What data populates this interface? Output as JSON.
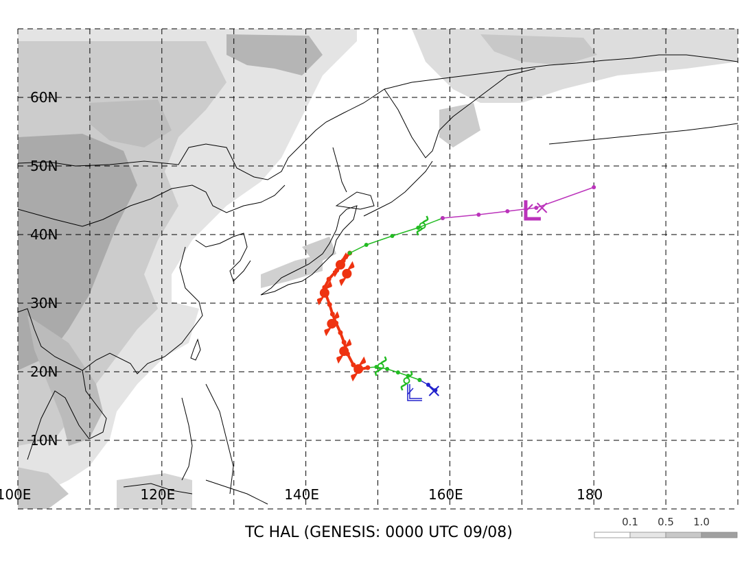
{
  "title": "TC HAL (GENESIS: 0000 UTC 09/08)",
  "map": {
    "lon_range": [
      100,
      200
    ],
    "lat_range": [
      0,
      70
    ],
    "lat_labels": [
      {
        "lat": 60,
        "label": "60N"
      },
      {
        "lat": 50,
        "label": "50N"
      },
      {
        "lat": 40,
        "label": "40N"
      },
      {
        "lat": 30,
        "label": "30N"
      },
      {
        "lat": 20,
        "label": "20N"
      },
      {
        "lat": 10,
        "label": "10N"
      }
    ],
    "lon_labels": [
      {
        "lon": 100,
        "label": "100E"
      },
      {
        "lon": 120,
        "label": "120E"
      },
      {
        "lon": 140,
        "label": "140E"
      },
      {
        "lon": 160,
        "label": "160E"
      },
      {
        "lon": 180,
        "label": "180"
      }
    ],
    "grid_lines": true
  },
  "legend": {
    "labels": [
      "0.1",
      "0.5",
      "1.0"
    ],
    "colors": [
      "#ffffff",
      "#e6e6e6",
      "#c8c8c8",
      "#a0a0a0"
    ]
  },
  "colors": {
    "tropical_depression": "#2222cc",
    "tropical_storm": "#22bb22",
    "typhoon": "#ee3311",
    "extratropical": "#bb33bb",
    "coast": "#000000"
  },
  "track": {
    "start_symbol_color": "#2222cc",
    "end_symbol_color": "#bb33bb",
    "segments": [
      {
        "stage": "depression",
        "points": [
          [
            158.0,
            17.3
          ],
          [
            157.0,
            18.1
          ],
          [
            155.8,
            18.8
          ]
        ]
      },
      {
        "stage": "storm",
        "points": [
          [
            155.8,
            18.8
          ],
          [
            154.2,
            19.4
          ],
          [
            152.8,
            19.9
          ],
          [
            151.3,
            20.4
          ],
          [
            149.8,
            20.7
          ],
          [
            148.6,
            20.6
          ]
        ]
      },
      {
        "stage": "typhoon",
        "points": [
          [
            148.6,
            20.6
          ],
          [
            147.3,
            20.3
          ],
          [
            146.6,
            21.0
          ],
          [
            145.8,
            22.6
          ],
          [
            145.3,
            24.3
          ],
          [
            144.8,
            25.7
          ],
          [
            144.2,
            27.1
          ],
          [
            143.7,
            28.4
          ],
          [
            143.3,
            29.8
          ],
          [
            142.8,
            31.2
          ],
          [
            142.6,
            32.3
          ],
          [
            143.2,
            33.5
          ],
          [
            144.3,
            34.8
          ],
          [
            145.2,
            36.2
          ],
          [
            146.1,
            37.3
          ]
        ]
      },
      {
        "stage": "storm",
        "points": [
          [
            146.1,
            37.3
          ],
          [
            148.4,
            38.5
          ],
          [
            152.0,
            39.8
          ],
          [
            155.6,
            41.0
          ],
          [
            159.0,
            42.4
          ]
        ]
      },
      {
        "stage": "extratropical",
        "points": [
          [
            159.0,
            42.4
          ],
          [
            164.0,
            42.9
          ],
          [
            168.0,
            43.4
          ],
          [
            172.0,
            43.9
          ],
          [
            180.0,
            46.9
          ]
        ]
      }
    ],
    "symbols": [
      {
        "type": "depression",
        "at": [
          155.0,
          17.0
        ]
      },
      {
        "type": "storm",
        "at": [
          154.0,
          18.7
        ]
      },
      {
        "type": "storm",
        "at": [
          150.4,
          20.8
        ]
      },
      {
        "type": "storm",
        "at": [
          156.2,
          41.3
        ]
      },
      {
        "type": "typhoon",
        "at": [
          147.3,
          20.4
        ]
      },
      {
        "type": "typhoon",
        "at": [
          145.3,
          23.0
        ]
      },
      {
        "type": "typhoon",
        "at": [
          143.6,
          27.0
        ]
      },
      {
        "type": "typhoon",
        "at": [
          142.6,
          31.5
        ]
      },
      {
        "type": "typhoon",
        "at": [
          144.8,
          35.6
        ]
      },
      {
        "type": "typhoon",
        "at": [
          145.7,
          34.3
        ]
      },
      {
        "type": "extratropical",
        "at": [
          171.3,
          43.6
        ]
      }
    ],
    "end_marks": [
      {
        "at": [
          157.8,
          17.2
        ],
        "color": "#2222cc"
      },
      {
        "at": [
          172.8,
          43.9
        ],
        "color": "#bb33bb"
      }
    ]
  }
}
